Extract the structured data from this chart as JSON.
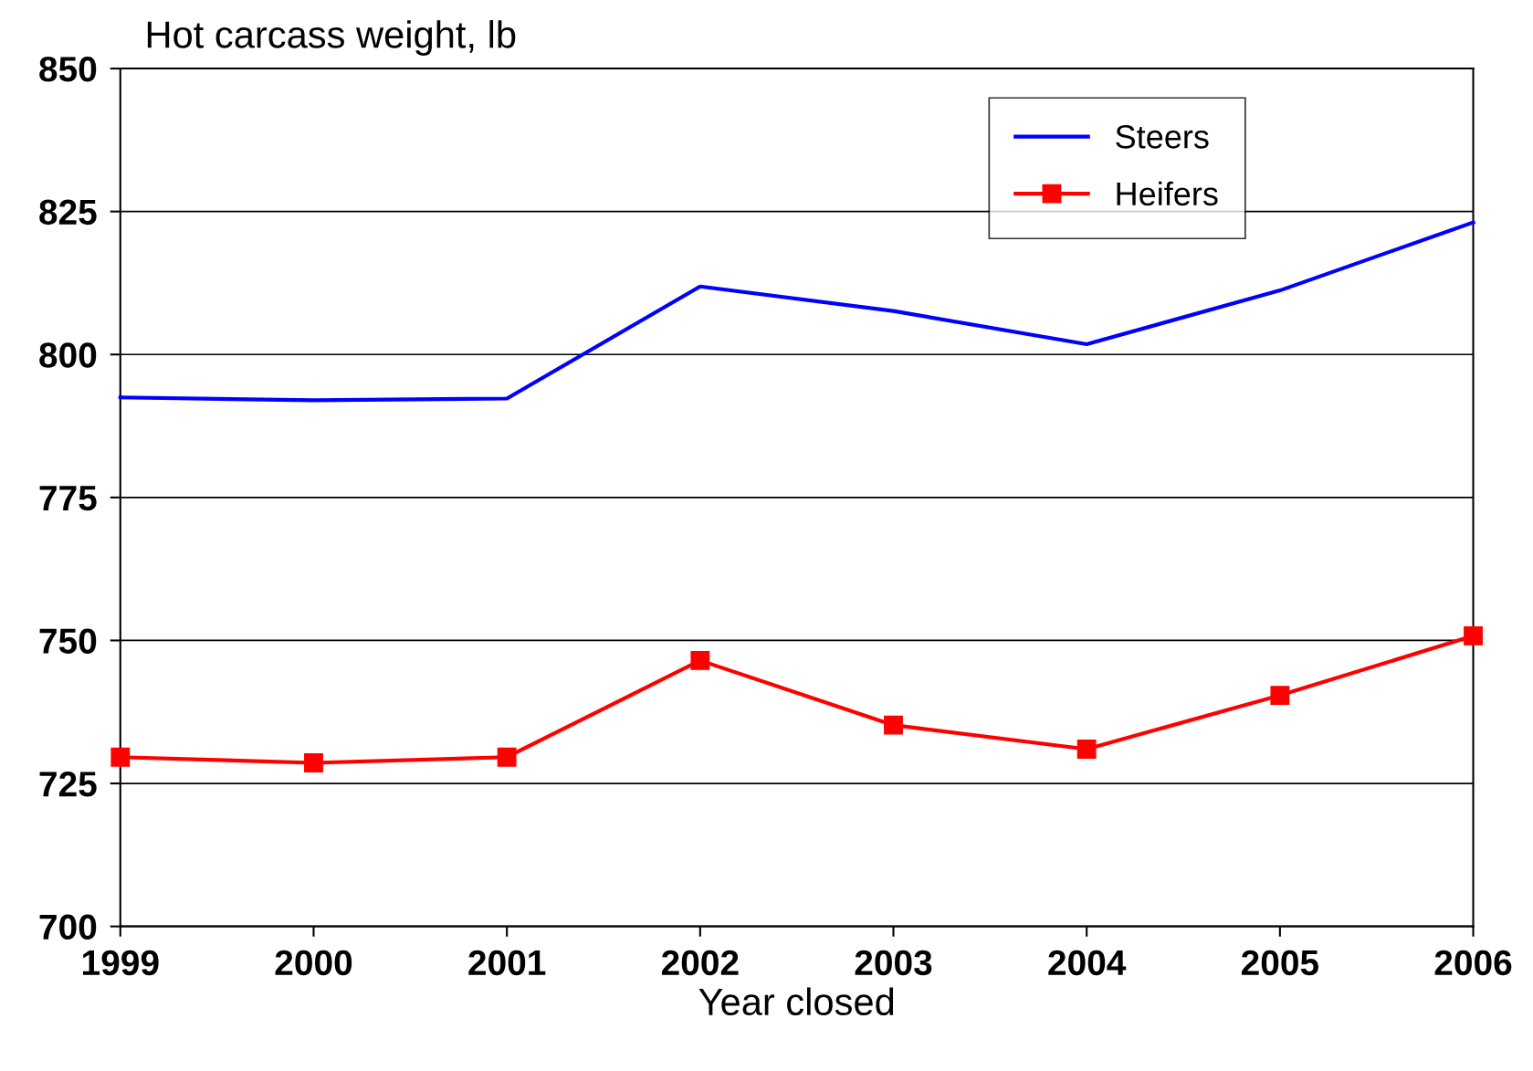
{
  "chart_data": {
    "type": "line",
    "ylabel": "Hot carcass weight, lb",
    "xlabel": "Year closed",
    "x": [
      1999,
      2000,
      2001,
      2002,
      2003,
      2004,
      2005,
      2006
    ],
    "series": [
      {
        "name": "Steers",
        "color": "#0000ff",
        "marker": "none",
        "values": [
          792.5,
          792,
          792.3,
          811.9,
          807.6,
          801.8,
          811.2,
          823.1
        ]
      },
      {
        "name": "Heifers",
        "color": "#ff0000",
        "marker": "square",
        "values": [
          729.6,
          728.6,
          729.6,
          746.5,
          735.2,
          731,
          740.4,
          750.8
        ]
      }
    ],
    "xlim": [
      1999,
      2006
    ],
    "xticks": [
      1999,
      2000,
      2001,
      2002,
      2003,
      2004,
      2005,
      2006
    ],
    "ylim": [
      700,
      850
    ],
    "yticks": [
      700,
      725,
      750,
      775,
      800,
      825,
      850
    ],
    "grid": "y",
    "legend": "top right",
    "line_style": "solid"
  }
}
